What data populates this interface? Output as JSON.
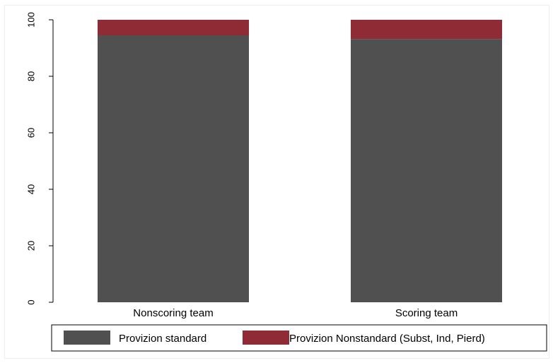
{
  "chart_data": {
    "type": "bar",
    "stacked": true,
    "categories": [
      "Nonscoring team",
      "Scoring team"
    ],
    "series": [
      {
        "name": "Provizion standard",
        "values": [
          94.5,
          93.2
        ],
        "color": "#505050"
      },
      {
        "name": "Provizion Nonstandard (Subst, Ind, Pierd)",
        "values": [
          5.5,
          6.8
        ],
        "color": "#8e2b35"
      }
    ],
    "title": "",
    "xlabel": "",
    "ylabel": "",
    "ylim": [
      0,
      100
    ],
    "yticks": [
      "0",
      "20",
      "40",
      "60",
      "80",
      "100"
    ],
    "grid": false,
    "legend_position": "bottom"
  }
}
